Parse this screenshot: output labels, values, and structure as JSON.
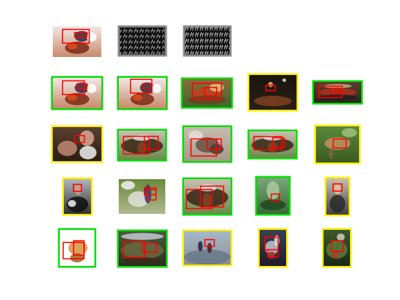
{
  "colors": {
    "background": "#ffffff",
    "correct_frame": "#00dd00",
    "partial_frame": "#ffee00",
    "detection_box": "#ff0000",
    "feature_panel_border": "#8a8a8a",
    "feature_panel_fill": "#111111"
  },
  "query": {
    "kind": "photo",
    "subject": "horse-racing",
    "feature_maps": [
      "hog-visualization",
      "hog-visualization"
    ]
  },
  "results": [
    {
      "frame": "correct",
      "subject": "horse-racing"
    },
    {
      "frame": "correct",
      "subject": "horse-racing"
    },
    {
      "frame": "correct",
      "subject": "horse-cart"
    },
    {
      "frame": "partial",
      "subject": "night-street"
    },
    {
      "frame": "correct",
      "subject": "crowd-street"
    },
    {
      "frame": "partial",
      "subject": "two-people-faces"
    },
    {
      "frame": "correct",
      "subject": "horse-race-track"
    },
    {
      "frame": "correct",
      "subject": "horse-rider-field"
    },
    {
      "frame": "correct",
      "subject": "horse-race-track"
    },
    {
      "frame": "partial",
      "subject": "dog-standing"
    },
    {
      "frame": "partial",
      "subject": "indoor-person"
    },
    {
      "frame": "none",
      "subject": "person-with-pony"
    },
    {
      "frame": "correct",
      "subject": "horse-race-track"
    },
    {
      "frame": "correct",
      "subject": "person-green-field"
    },
    {
      "frame": "partial",
      "subject": "person-portrait"
    },
    {
      "frame": "correct",
      "subject": "horse-drawing"
    },
    {
      "frame": "correct",
      "subject": "soldiers-group"
    },
    {
      "frame": "partial",
      "subject": "people-on-beach"
    },
    {
      "frame": "partial",
      "subject": "crowd-on-floor"
    },
    {
      "frame": "partial",
      "subject": "garden-scene"
    }
  ]
}
